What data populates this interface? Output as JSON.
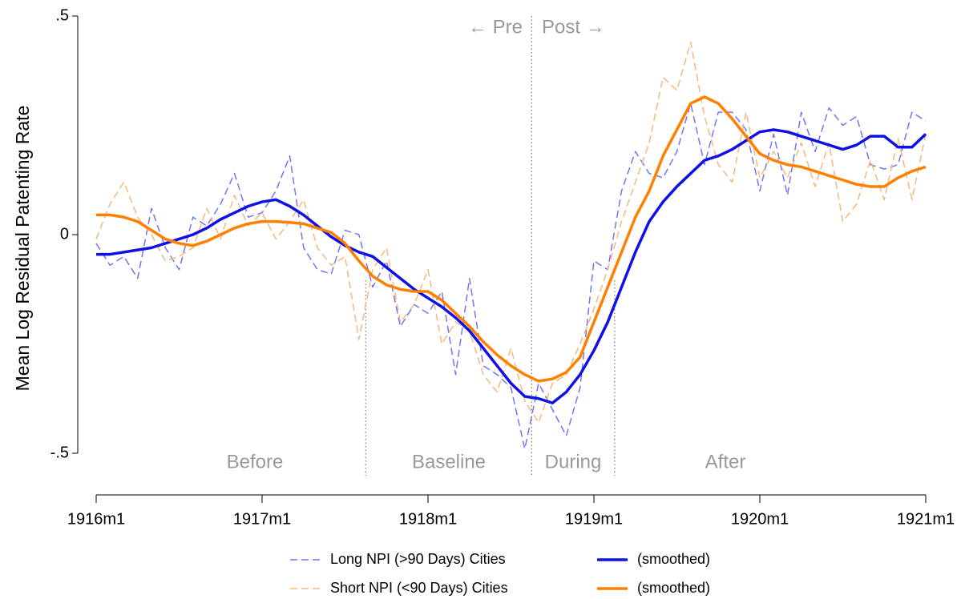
{
  "chart_data": {
    "type": "line",
    "y_label": "Mean Log Residual Patenting Rate",
    "x": [
      1916,
      1916.0833,
      1916.1667,
      1916.25,
      1916.3333,
      1916.4167,
      1916.5,
      1916.5833,
      1916.6667,
      1916.75,
      1916.8333,
      1916.9167,
      1917,
      1917.0833,
      1917.1667,
      1917.25,
      1917.3333,
      1917.4167,
      1917.5,
      1917.5833,
      1917.6667,
      1917.75,
      1917.8333,
      1917.9167,
      1918,
      1918.0833,
      1918.1667,
      1918.25,
      1918.3333,
      1918.4167,
      1918.5,
      1918.5833,
      1918.6667,
      1918.75,
      1918.8333,
      1918.9167,
      1919,
      1919.0833,
      1919.1667,
      1919.25,
      1919.3333,
      1919.4167,
      1919.5,
      1919.5833,
      1919.6667,
      1919.75,
      1919.8333,
      1919.9167,
      1920,
      1920.0833,
      1920.1667,
      1920.25,
      1920.3333,
      1920.4167,
      1920.5,
      1920.5833,
      1920.6667,
      1920.75,
      1920.8333,
      1920.9167,
      1921
    ],
    "series": [
      {
        "name": "Long NPI (>90 Days) Cities",
        "color": "#7474f2",
        "dash": true,
        "values": [
          -0.02,
          -0.07,
          -0.05,
          -0.1,
          0.06,
          -0.03,
          -0.08,
          0.04,
          0.02,
          0.07,
          0.14,
          0.04,
          0.05,
          0.1,
          0.18,
          -0.03,
          -0.08,
          -0.09,
          0.01,
          0.0,
          -0.12,
          -0.06,
          -0.21,
          -0.16,
          -0.18,
          -0.13,
          -0.32,
          -0.1,
          -0.3,
          -0.32,
          -0.35,
          -0.49,
          -0.34,
          -0.4,
          -0.46,
          -0.35,
          -0.06,
          -0.08,
          0.1,
          0.19,
          0.14,
          0.13,
          0.19,
          0.3,
          0.16,
          0.28,
          0.28,
          0.24,
          0.1,
          0.23,
          0.09,
          0.28,
          0.19,
          0.29,
          0.25,
          0.27,
          0.16,
          0.15,
          0.16,
          0.28,
          0.26
        ]
      },
      {
        "name": "(smoothed)",
        "color": "#1010e6",
        "dash": false,
        "values": [
          -0.045,
          -0.045,
          -0.04,
          -0.035,
          -0.03,
          -0.02,
          -0.01,
          0.0,
          0.015,
          0.035,
          0.05,
          0.065,
          0.075,
          0.08,
          0.065,
          0.045,
          0.02,
          -0.005,
          -0.025,
          -0.04,
          -0.05,
          -0.075,
          -0.1,
          -0.125,
          -0.145,
          -0.165,
          -0.19,
          -0.22,
          -0.26,
          -0.3,
          -0.34,
          -0.37,
          -0.375,
          -0.385,
          -0.36,
          -0.32,
          -0.265,
          -0.2,
          -0.12,
          -0.04,
          0.03,
          0.075,
          0.11,
          0.14,
          0.17,
          0.18,
          0.195,
          0.215,
          0.235,
          0.24,
          0.235,
          0.225,
          0.215,
          0.205,
          0.195,
          0.205,
          0.225,
          0.225,
          0.2,
          0.2,
          0.23
        ]
      },
      {
        "name": "Short NPI (<90 Days) Cities",
        "color": "#f7b77a",
        "dash": true,
        "values": [
          -0.01,
          0.07,
          0.12,
          0.04,
          0.0,
          -0.06,
          -0.05,
          -0.03,
          0.06,
          -0.01,
          0.09,
          0.02,
          0.05,
          -0.01,
          0.03,
          0.08,
          -0.03,
          -0.07,
          -0.05,
          -0.24,
          -0.08,
          -0.03,
          -0.2,
          -0.16,
          -0.08,
          -0.25,
          -0.2,
          -0.22,
          -0.32,
          -0.36,
          -0.26,
          -0.38,
          -0.43,
          -0.34,
          -0.32,
          -0.25,
          -0.17,
          -0.08,
          0.03,
          0.12,
          0.21,
          0.36,
          0.33,
          0.44,
          0.27,
          0.16,
          0.12,
          0.28,
          0.13,
          0.19,
          0.13,
          0.21,
          0.11,
          0.21,
          0.03,
          0.07,
          0.17,
          0.08,
          0.22,
          0.08,
          0.23
        ]
      },
      {
        "name": "(smoothed)",
        "color": "#ff8000",
        "dash": false,
        "values": [
          0.045,
          0.045,
          0.04,
          0.03,
          0.01,
          -0.01,
          -0.02,
          -0.025,
          -0.015,
          0.0,
          0.015,
          0.025,
          0.03,
          0.03,
          0.028,
          0.025,
          0.015,
          0.005,
          -0.02,
          -0.06,
          -0.095,
          -0.115,
          -0.125,
          -0.13,
          -0.13,
          -0.15,
          -0.18,
          -0.21,
          -0.245,
          -0.275,
          -0.3,
          -0.32,
          -0.335,
          -0.33,
          -0.315,
          -0.28,
          -0.2,
          -0.12,
          -0.04,
          0.04,
          0.1,
          0.18,
          0.24,
          0.3,
          0.315,
          0.3,
          0.265,
          0.225,
          0.185,
          0.17,
          0.16,
          0.155,
          0.145,
          0.135,
          0.125,
          0.115,
          0.11,
          0.11,
          0.13,
          0.145,
          0.155
        ]
      }
    ],
    "xlim": [
      1916,
      1921
    ],
    "xticks": [
      {
        "value": 1916,
        "label": "1916m1"
      },
      {
        "value": 1917,
        "label": "1917m1"
      },
      {
        "value": 1918,
        "label": "1918m1"
      },
      {
        "value": 1919,
        "label": "1919m1"
      },
      {
        "value": 1920,
        "label": "1920m1"
      },
      {
        "value": 1921,
        "label": "1921m1"
      }
    ],
    "ylim": [
      -0.5,
      0.5
    ],
    "yticks": [
      {
        "value": -0.5,
        "label": "-.5"
      },
      0,
      {
        "value": 0.5,
        "label": ".5"
      }
    ],
    "dividers": [
      1917.625,
      1918.625,
      1919.125
    ],
    "periods": [
      "Before",
      "Baseline",
      "During",
      "After"
    ],
    "pre_label": "← Pre",
    "post_label": "Post →"
  }
}
